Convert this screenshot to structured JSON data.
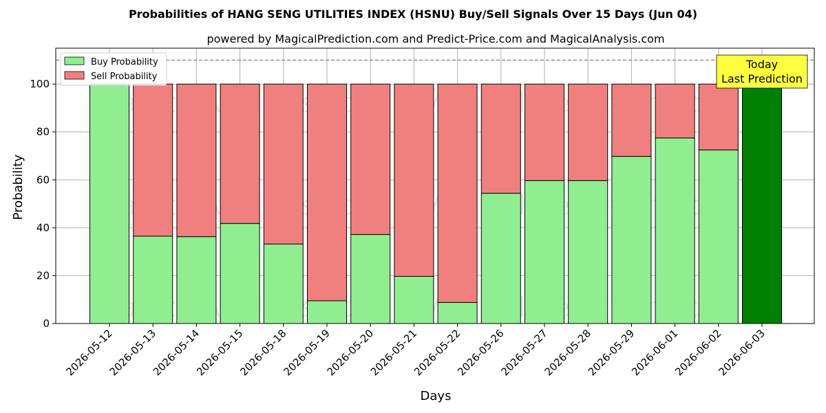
{
  "chart_data": {
    "type": "bar",
    "stacked": true,
    "title": "Probabilities of HANG SENG UTILITIES INDEX (HSNU) Buy/Sell Signals Over 15 Days (Jun 04)",
    "subtitle": "powered by MagicalPrediction.com and Predict-Price.com and MagicalAnalysis.com",
    "xlabel": "Days",
    "ylabel": "Probability",
    "ylim": [
      0,
      115
    ],
    "yticks": [
      0,
      20,
      40,
      60,
      80,
      100
    ],
    "grid": true,
    "legend_position": "top-left",
    "reference_line": 110,
    "categories": [
      "2026-05-12",
      "2026-05-13",
      "2026-05-14",
      "2026-05-15",
      "2026-05-18",
      "2026-05-19",
      "2026-05-20",
      "2026-05-21",
      "2026-05-22",
      "2026-05-26",
      "2026-05-27",
      "2026-05-28",
      "2026-05-29",
      "2026-06-01",
      "2026-06-02",
      "2026-06-03"
    ],
    "series": [
      {
        "name": "Buy Probability",
        "color": "#90ee90",
        "values": [
          100,
          36.5,
          36.3,
          41.8,
          33.2,
          9.5,
          37.2,
          19.7,
          8.8,
          54.4,
          59.7,
          59.7,
          69.8,
          77.5,
          72.5,
          100
        ]
      },
      {
        "name": "Sell Probability",
        "color": "#f08080",
        "values": [
          0,
          63.5,
          63.7,
          58.2,
          66.8,
          90.5,
          62.8,
          80.3,
          91.2,
          45.6,
          40.3,
          40.3,
          30.2,
          22.5,
          27.5,
          0
        ]
      }
    ],
    "highlight": {
      "index": 15,
      "color": "#008000"
    },
    "annotation": {
      "lines": [
        "Today",
        "Last Prediction"
      ],
      "background": "#ffff40"
    },
    "watermarks": [
      "MagicalAnalysis.com",
      "MagicalPrediction.com"
    ]
  }
}
